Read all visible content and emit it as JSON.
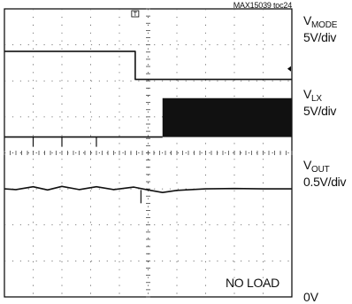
{
  "chart_data": {
    "type": "line",
    "title": "",
    "figure_code": "MAX15039 toc24",
    "annotation": "NO LOAD",
    "ground_label": "0V",
    "grid": true,
    "divisions": {
      "x": 10,
      "y": 8
    },
    "trigger_marker": "T",
    "series": [
      {
        "key": "v_mode",
        "name_main": "V",
        "name_sub": "MODE",
        "scale": "5V/div",
        "points": [
          [
            0,
            6.82
          ],
          [
            4.55,
            6.82
          ],
          [
            4.55,
            6.04
          ],
          [
            10,
            6.04
          ]
        ]
      },
      {
        "key": "v_lx",
        "name_main": "V",
        "name_sub": "LX",
        "scale": "5V/div",
        "points": [
          [
            0,
            4.44
          ],
          [
            5.5,
            4.44
          ]
        ],
        "switching": {
          "x_start": 5.5,
          "x_end": 10,
          "low": 4.44,
          "high": 5.52
        },
        "glitches": [
          1.0,
          2.0,
          3.2
        ]
      },
      {
        "key": "v_out",
        "name_main": "V",
        "name_sub": "OUT",
        "scale": "0.5V/div",
        "points": [
          [
            0,
            3.0
          ],
          [
            0.4,
            2.98
          ],
          [
            1.0,
            3.06
          ],
          [
            1.5,
            2.97
          ],
          [
            2.0,
            3.07
          ],
          [
            2.6,
            2.98
          ],
          [
            3.2,
            3.06
          ],
          [
            3.8,
            2.98
          ],
          [
            4.5,
            3.05
          ],
          [
            5.0,
            2.97
          ],
          [
            5.5,
            2.9
          ],
          [
            6.0,
            2.96
          ],
          [
            7.0,
            3.0
          ],
          [
            8.0,
            3.01
          ],
          [
            9.0,
            3.0
          ],
          [
            10,
            3.0
          ]
        ]
      }
    ]
  }
}
